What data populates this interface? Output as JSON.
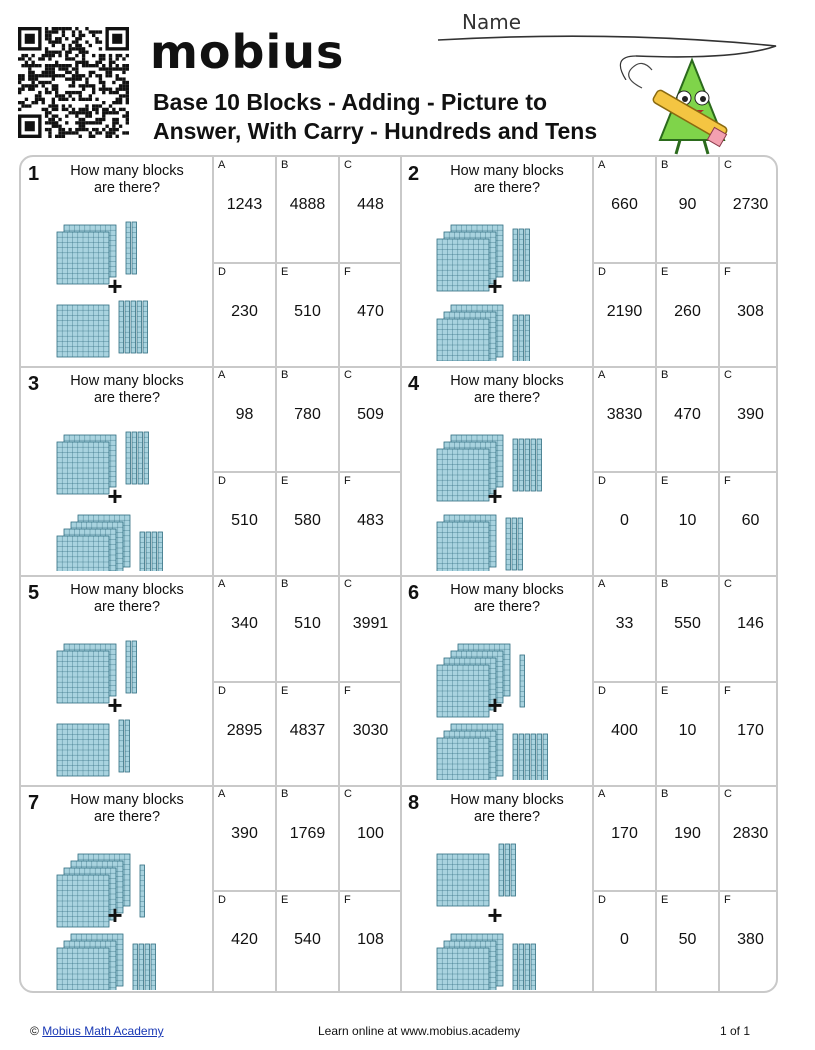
{
  "header": {
    "brand": "mobius",
    "title_line1": "Base 10 Blocks - Adding - Picture to",
    "title_line2": "Answer, With Carry - Hundreds and Tens",
    "name_label": "Name"
  },
  "prompt": {
    "line1": "How many blocks",
    "line2": "are there?"
  },
  "questions": [
    {
      "num": "1",
      "options": [
        {
          "letter": "A",
          "value": "1243"
        },
        {
          "letter": "B",
          "value": "4888"
        },
        {
          "letter": "C",
          "value": "448"
        },
        {
          "letter": "D",
          "value": "230"
        },
        {
          "letter": "E",
          "value": "510"
        },
        {
          "letter": "F",
          "value": "470"
        }
      ],
      "top": {
        "hundreds": 2,
        "tens": 2
      },
      "bottom": {
        "hundreds": 1,
        "tens": 5
      }
    },
    {
      "num": "2",
      "options": [
        {
          "letter": "A",
          "value": "660"
        },
        {
          "letter": "B",
          "value": "90"
        },
        {
          "letter": "C",
          "value": "2730"
        },
        {
          "letter": "D",
          "value": "2190"
        },
        {
          "letter": "E",
          "value": "260"
        },
        {
          "letter": "F",
          "value": "308"
        }
      ],
      "top": {
        "hundreds": 3,
        "tens": 3
      },
      "bottom": {
        "hundreds": 3,
        "tens": 3
      }
    },
    {
      "num": "3",
      "options": [
        {
          "letter": "A",
          "value": "98"
        },
        {
          "letter": "B",
          "value": "780"
        },
        {
          "letter": "C",
          "value": "509"
        },
        {
          "letter": "D",
          "value": "510"
        },
        {
          "letter": "E",
          "value": "580"
        },
        {
          "letter": "F",
          "value": "483"
        }
      ],
      "top": {
        "hundreds": 2,
        "tens": 4
      },
      "bottom": {
        "hundreds": 4,
        "tens": 4
      }
    },
    {
      "num": "4",
      "options": [
        {
          "letter": "A",
          "value": "3830"
        },
        {
          "letter": "B",
          "value": "470"
        },
        {
          "letter": "C",
          "value": "390"
        },
        {
          "letter": "D",
          "value": "0"
        },
        {
          "letter": "E",
          "value": "10"
        },
        {
          "letter": "F",
          "value": "60"
        }
      ],
      "top": {
        "hundreds": 3,
        "tens": 5
      },
      "bottom": {
        "hundreds": 2,
        "tens": 3
      }
    },
    {
      "num": "5",
      "options": [
        {
          "letter": "A",
          "value": "340"
        },
        {
          "letter": "B",
          "value": "510"
        },
        {
          "letter": "C",
          "value": "3991"
        },
        {
          "letter": "D",
          "value": "2895"
        },
        {
          "letter": "E",
          "value": "4837"
        },
        {
          "letter": "F",
          "value": "3030"
        }
      ],
      "top": {
        "hundreds": 2,
        "tens": 2
      },
      "bottom": {
        "hundreds": 1,
        "tens": 2
      }
    },
    {
      "num": "6",
      "options": [
        {
          "letter": "A",
          "value": "33"
        },
        {
          "letter": "B",
          "value": "550"
        },
        {
          "letter": "C",
          "value": "146"
        },
        {
          "letter": "D",
          "value": "400"
        },
        {
          "letter": "E",
          "value": "10"
        },
        {
          "letter": "F",
          "value": "170"
        }
      ],
      "top": {
        "hundreds": 4,
        "tens": 1
      },
      "bottom": {
        "hundreds": 3,
        "tens": 6
      }
    },
    {
      "num": "7",
      "options": [
        {
          "letter": "A",
          "value": "390"
        },
        {
          "letter": "B",
          "value": "1769"
        },
        {
          "letter": "C",
          "value": "100"
        },
        {
          "letter": "D",
          "value": "420"
        },
        {
          "letter": "E",
          "value": "540"
        },
        {
          "letter": "F",
          "value": "108"
        }
      ],
      "top": {
        "hundreds": 4,
        "tens": 1
      },
      "bottom": {
        "hundreds": 3,
        "tens": 4
      }
    },
    {
      "num": "8",
      "options": [
        {
          "letter": "A",
          "value": "170"
        },
        {
          "letter": "B",
          "value": "190"
        },
        {
          "letter": "C",
          "value": "2830"
        },
        {
          "letter": "D",
          "value": "0"
        },
        {
          "letter": "E",
          "value": "50"
        },
        {
          "letter": "F",
          "value": "380"
        }
      ],
      "top": {
        "hundreds": 1,
        "tens": 3
      },
      "bottom": {
        "hundreds": 3,
        "tens": 4
      }
    }
  ],
  "footer": {
    "copyright": "©",
    "link_text": "Mobius Math Academy",
    "center": "Learn online at www.mobius.academy",
    "page": "1 of 1"
  },
  "colors": {
    "block_fill": "#a9d3df",
    "block_line": "#2f6d80",
    "border": "#c9c9c9",
    "link": "#1a39b5"
  }
}
